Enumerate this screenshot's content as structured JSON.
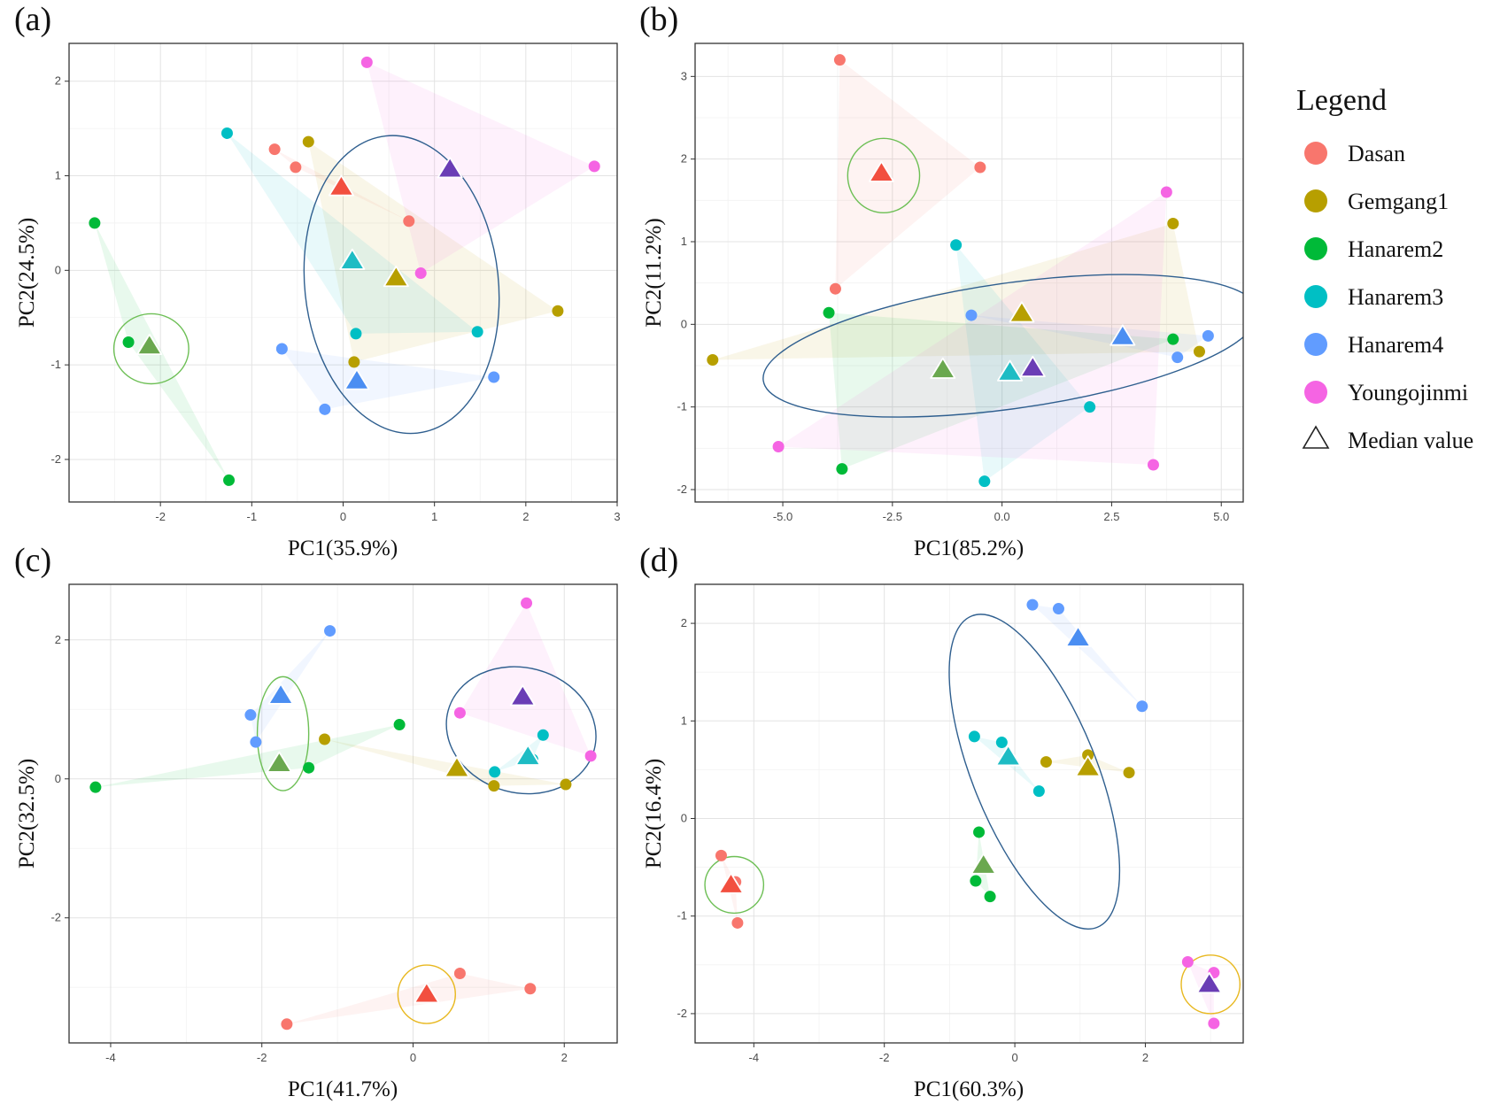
{
  "legend": {
    "title": "Legend",
    "median_label": "Median value",
    "groups": [
      {
        "name": "Dasan",
        "color": "#F8766D"
      },
      {
        "name": "Gemgang1",
        "color": "#B79F00"
      },
      {
        "name": "Hanarem2",
        "color": "#00BA38"
      },
      {
        "name": "Hanarem3",
        "color": "#00BFC4"
      },
      {
        "name": "Hanarem4",
        "color": "#619CFF"
      },
      {
        "name": "Youngojinmi",
        "color": "#F564E3"
      }
    ]
  },
  "colors": {
    "median_triangle": {
      "Dasan": "#F24F3F",
      "Gemgang1": "#B79F00",
      "Hanarem2": "#6AA84F",
      "Hanarem3": "#1EBCC4",
      "Hanarem4": "#4B8EF2",
      "Youngojinmi": "#6A3DB5"
    },
    "ellipse_blue": "#2F5F8F",
    "ellipse_green": "#6DBF55",
    "ellipse_yellow": "#E8B820"
  },
  "chart_data": [
    {
      "type": "scatter",
      "panel_label": "(a)",
      "xlabel": "PC1(35.9%)",
      "ylabel": "PC2(24.5%)",
      "xlim": [
        -3.0,
        3.0
      ],
      "ylim": [
        -2.45,
        2.4
      ],
      "xticks": [
        -2,
        -1,
        0,
        1,
        2,
        3
      ],
      "yticks": [
        -2,
        -1,
        0,
        1,
        2
      ],
      "xtick_labels": [
        "-2",
        "-1",
        "0",
        "1",
        "2",
        "3"
      ],
      "ytick_labels": [
        "-2",
        "-1",
        "0",
        "1",
        "2"
      ],
      "groups": [
        {
          "name": "Dasan",
          "points": [
            [
              -0.75,
              1.28
            ],
            [
              -0.52,
              1.09
            ],
            [
              0.72,
              0.52
            ]
          ],
          "median": [
            -0.02,
            0.88
          ]
        },
        {
          "name": "Gemgang1",
          "points": [
            [
              -0.38,
              1.36
            ],
            [
              2.35,
              -0.43
            ],
            [
              0.12,
              -0.97
            ]
          ],
          "median": [
            0.58,
            -0.08
          ]
        },
        {
          "name": "Hanarem2",
          "points": [
            [
              -2.72,
              0.5
            ],
            [
              -2.35,
              -0.76
            ],
            [
              -1.25,
              -2.22
            ]
          ],
          "median": [
            -2.12,
            -0.8
          ]
        },
        {
          "name": "Hanarem3",
          "points": [
            [
              -1.27,
              1.45
            ],
            [
              1.47,
              -0.65
            ],
            [
              0.14,
              -0.67
            ]
          ],
          "median": [
            0.1,
            0.1
          ]
        },
        {
          "name": "Hanarem4",
          "points": [
            [
              -0.67,
              -0.83
            ],
            [
              -0.2,
              -1.47
            ],
            [
              1.65,
              -1.13
            ]
          ],
          "median": [
            0.15,
            -1.17
          ]
        },
        {
          "name": "Youngojinmi",
          "points": [
            [
              0.26,
              2.2
            ],
            [
              2.75,
              1.1
            ],
            [
              0.85,
              -0.03
            ]
          ],
          "median": [
            1.17,
            1.07
          ]
        }
      ],
      "ellipses": [
        {
          "color": "blue",
          "cx": 0.64,
          "cy": -0.15,
          "rx": 1.06,
          "ry": 1.58,
          "angle_deg": 6
        },
        {
          "color": "green",
          "cx": -2.1,
          "cy": -0.83,
          "rx": 0.41,
          "ry": 0.37,
          "angle_deg": 0
        }
      ]
    },
    {
      "type": "scatter",
      "panel_label": "(b)",
      "xlabel": "PC1(85.2%)",
      "ylabel": "PC2(11.2%)",
      "xlim": [
        -7.0,
        5.5
      ],
      "ylim": [
        -2.15,
        3.4
      ],
      "xticks": [
        -5.0,
        -2.5,
        0.0,
        2.5,
        5.0
      ],
      "yticks": [
        -2,
        -1,
        0,
        1,
        2,
        3
      ],
      "xtick_labels": [
        "-5.0",
        "-2.5",
        "0.0",
        "2.5",
        "5.0"
      ],
      "ytick_labels": [
        "-2",
        "-1",
        "0",
        "1",
        "2",
        "3"
      ],
      "groups": [
        {
          "name": "Dasan",
          "points": [
            [
              -3.7,
              3.2
            ],
            [
              -0.5,
              1.9
            ],
            [
              -3.8,
              0.43
            ]
          ],
          "median": [
            -2.75,
            1.83
          ]
        },
        {
          "name": "Gemgang1",
          "points": [
            [
              3.9,
              1.22
            ],
            [
              -6.6,
              -0.43
            ],
            [
              4.5,
              -0.33
            ]
          ],
          "median": [
            0.45,
            0.13
          ]
        },
        {
          "name": "Hanarem2",
          "points": [
            [
              -3.95,
              0.14
            ],
            [
              3.9,
              -0.18
            ],
            [
              -3.65,
              -1.75
            ]
          ],
          "median": [
            -1.35,
            -0.55
          ]
        },
        {
          "name": "Hanarem3",
          "points": [
            [
              -1.05,
              0.96
            ],
            [
              2.0,
              -1.0
            ],
            [
              -0.4,
              -1.9
            ]
          ],
          "median": [
            0.18,
            -0.58
          ]
        },
        {
          "name": "Hanarem4",
          "points": [
            [
              -0.7,
              0.11
            ],
            [
              4.7,
              -0.14
            ],
            [
              4.0,
              -0.4
            ]
          ],
          "median": [
            2.75,
            -0.15
          ]
        },
        {
          "name": "Youngojinmi",
          "points": [
            [
              3.75,
              1.6
            ],
            [
              -5.1,
              -1.48
            ],
            [
              3.45,
              -1.7
            ]
          ],
          "median": [
            0.7,
            -0.53
          ]
        }
      ],
      "ellipses": [
        {
          "color": "blue",
          "cx": 0.2,
          "cy": -0.26,
          "rx": 5.7,
          "ry": 0.76,
          "angle_deg": 8
        },
        {
          "color": "green",
          "cx": -2.7,
          "cy": 1.8,
          "rx": 0.82,
          "ry": 0.45,
          "angle_deg": 0
        }
      ]
    },
    {
      "type": "scatter",
      "panel_label": "(c)",
      "xlabel": "PC1(41.7%)",
      "ylabel": "PC2(32.5%)",
      "xlim": [
        -4.55,
        2.7
      ],
      "ylim": [
        -3.8,
        2.8
      ],
      "xticks": [
        -4,
        -2,
        0,
        2
      ],
      "yticks": [
        -2,
        0,
        2
      ],
      "xtick_labels": [
        "-4",
        "-2",
        "0",
        "2"
      ],
      "ytick_labels": [
        "-2",
        "0",
        "2"
      ],
      "groups": [
        {
          "name": "Dasan",
          "points": [
            [
              -1.67,
              -3.53
            ],
            [
              0.62,
              -2.8
            ],
            [
              1.55,
              -3.02
            ]
          ],
          "median": [
            0.18,
            -3.1
          ]
        },
        {
          "name": "Gemgang1",
          "points": [
            [
              -1.17,
              0.57
            ],
            [
              1.07,
              -0.1
            ],
            [
              2.02,
              -0.08
            ]
          ],
          "median": [
            0.58,
            0.15
          ]
        },
        {
          "name": "Hanarem2",
          "points": [
            [
              -4.2,
              -0.12
            ],
            [
              -0.18,
              0.78
            ],
            [
              -1.38,
              0.16
            ]
          ],
          "median": [
            -1.77,
            0.22
          ]
        },
        {
          "name": "Hanarem3",
          "points": [
            [
              1.72,
              0.63
            ],
            [
              1.08,
              0.1
            ],
            [
              1.58,
              0.28
            ]
          ],
          "median": [
            1.52,
            0.32
          ]
        },
        {
          "name": "Hanarem4",
          "points": [
            [
              -1.1,
              2.13
            ],
            [
              -2.15,
              0.92
            ],
            [
              -2.08,
              0.53
            ]
          ],
          "median": [
            -1.75,
            1.2
          ]
        },
        {
          "name": "Youngojinmi",
          "points": [
            [
              1.5,
              2.53
            ],
            [
              0.62,
              0.95
            ],
            [
              2.35,
              0.33
            ]
          ],
          "median": [
            1.45,
            1.18
          ]
        }
      ],
      "ellipses": [
        {
          "color": "blue",
          "cx": 1.43,
          "cy": 0.7,
          "rx": 1.0,
          "ry": 0.9,
          "angle_deg": -15
        },
        {
          "color": "green",
          "cx": -1.72,
          "cy": 0.65,
          "rx": 0.34,
          "ry": 0.82,
          "angle_deg": 0
        },
        {
          "color": "yellow",
          "cx": 0.18,
          "cy": -3.1,
          "rx": 0.38,
          "ry": 0.42,
          "angle_deg": 0
        }
      ]
    },
    {
      "type": "scatter",
      "panel_label": "(d)",
      "xlabel": "PC1(60.3%)",
      "ylabel": "PC2(16.4%)",
      "xlim": [
        -4.9,
        3.5
      ],
      "ylim": [
        -2.3,
        2.4
      ],
      "xticks": [
        -4,
        -2,
        0,
        2
      ],
      "yticks": [
        -2,
        -1,
        0,
        1,
        2
      ],
      "xtick_labels": [
        "-4",
        "-2",
        "0",
        "2"
      ],
      "ytick_labels": [
        "-2",
        "-1",
        "0",
        "1",
        "2"
      ],
      "groups": [
        {
          "name": "Dasan",
          "points": [
            [
              -4.5,
              -0.38
            ],
            [
              -4.28,
              -0.65
            ],
            [
              -4.25,
              -1.07
            ]
          ],
          "median": [
            -4.35,
            -0.68
          ]
        },
        {
          "name": "Gemgang1",
          "points": [
            [
              0.48,
              0.58
            ],
            [
              1.12,
              0.65
            ],
            [
              1.75,
              0.47
            ]
          ],
          "median": [
            1.12,
            0.52
          ]
        },
        {
          "name": "Hanarem2",
          "points": [
            [
              -0.55,
              -0.14
            ],
            [
              -0.6,
              -0.64
            ],
            [
              -0.38,
              -0.8
            ]
          ],
          "median": [
            -0.48,
            -0.48
          ]
        },
        {
          "name": "Hanarem3",
          "points": [
            [
              -0.62,
              0.84
            ],
            [
              -0.2,
              0.78
            ],
            [
              0.37,
              0.28
            ]
          ],
          "median": [
            -0.1,
            0.63
          ]
        },
        {
          "name": "Hanarem4",
          "points": [
            [
              0.27,
              2.19
            ],
            [
              0.67,
              2.15
            ],
            [
              1.95,
              1.15
            ]
          ],
          "median": [
            0.97,
            1.85
          ]
        },
        {
          "name": "Youngojinmi",
          "points": [
            [
              2.65,
              -1.47
            ],
            [
              3.05,
              -1.58
            ],
            [
              3.05,
              -2.1
            ]
          ],
          "median": [
            2.98,
            -1.7
          ]
        }
      ],
      "ellipses": [
        {
          "color": "blue",
          "cx": 0.3,
          "cy": 0.48,
          "rx": 0.95,
          "ry": 1.72,
          "angle_deg": 22
        },
        {
          "color": "green",
          "cx": -4.3,
          "cy": -0.68,
          "rx": 0.45,
          "ry": 0.29,
          "angle_deg": 0
        },
        {
          "color": "yellow",
          "cx": 3.0,
          "cy": -1.7,
          "rx": 0.45,
          "ry": 0.3,
          "angle_deg": 0
        }
      ]
    }
  ]
}
